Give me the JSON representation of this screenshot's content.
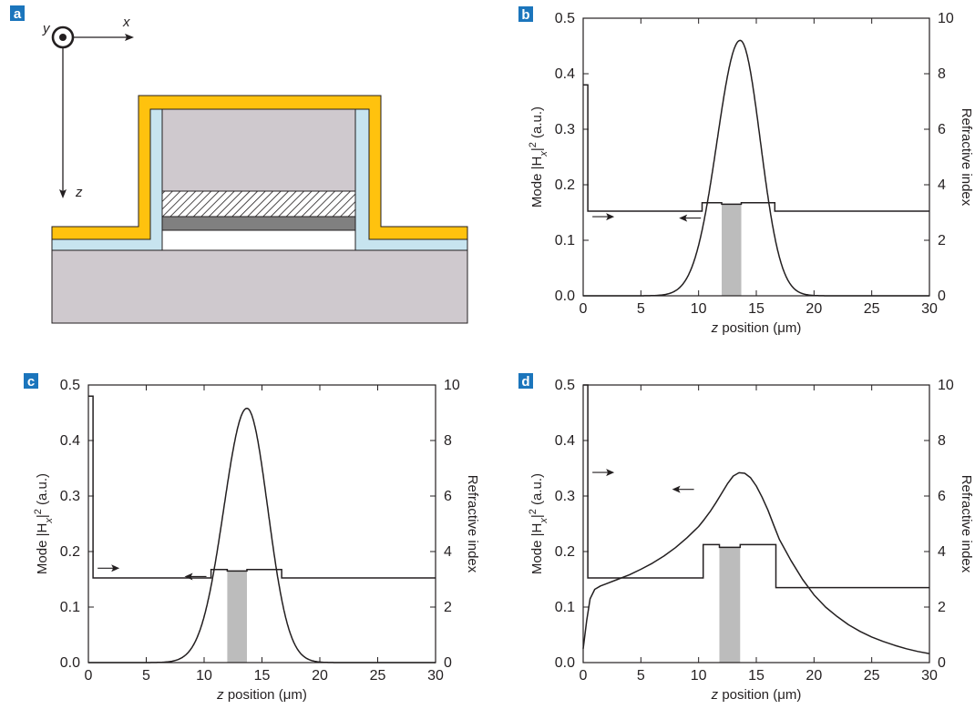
{
  "panel_a": {
    "label": "a",
    "axis_y": "y",
    "axis_x": "x",
    "axis_z": "z"
  },
  "colors": {
    "gold": "#ffc20e",
    "blue_layer": "#c7e4ef",
    "substrate": "#cfc9ce",
    "dark_layer": "#808080",
    "active_region": "#bcbcbc",
    "label_box": "#1b75bc",
    "ink": "#231f20"
  },
  "chart_data": [
    {
      "type": "line",
      "panel": "b",
      "xlabel_italic": "z",
      "xlabel_rest": " position (μm)",
      "ylabel_main": "Mode |H",
      "ylabel_sub": "x",
      "ylabel_tail": "|",
      "ylabel_sup": "2",
      "ylabel_unit": " (a.u.)",
      "y2label": "Refractive index",
      "xlim": [
        0,
        30
      ],
      "ylim": [
        0,
        0.5
      ],
      "y2lim": [
        0,
        10
      ],
      "xticks": [
        "0",
        "5",
        "10",
        "15",
        "20",
        "25",
        "30"
      ],
      "yticks": [
        "0.0",
        "0.1",
        "0.2",
        "0.3",
        "0.4",
        "0.5"
      ],
      "y2ticks": [
        "0",
        "2",
        "4",
        "6",
        "8",
        "10"
      ],
      "mode": {
        "shape": "gaussian",
        "peak_z": 13.6,
        "peak_value": 0.46,
        "width_left": 2.0,
        "width_right": 1.75,
        "floor": 0
      },
      "index": {
        "x": [
          0,
          0.4,
          0.4,
          10.3,
          10.3,
          12.0,
          12.0,
          13.7,
          13.7,
          16.6,
          16.6,
          30
        ],
        "y": [
          7.6,
          7.6,
          3.05,
          3.05,
          3.35,
          3.35,
          3.3,
          3.3,
          3.35,
          3.35,
          3.05,
          3.05
        ]
      },
      "active_band": [
        12.0,
        13.7
      ],
      "active_band_height": 3.3,
      "arrows": [
        {
          "x": 0.8,
          "y2": 2.85,
          "direction": "right"
        },
        {
          "x": 10.2,
          "y": 0.14,
          "direction": "left"
        }
      ]
    },
    {
      "type": "line",
      "panel": "c",
      "xlabel_italic": "z",
      "xlabel_rest": " position (μm)",
      "ylabel_main": "Mode |H",
      "ylabel_sub": "x",
      "ylabel_tail": "|",
      "ylabel_sup": "2",
      "ylabel_unit": " (a.u.)",
      "y2label": "Refractive index",
      "xlim": [
        0,
        30
      ],
      "ylim": [
        0,
        0.5
      ],
      "y2lim": [
        0,
        10
      ],
      "xticks": [
        "0",
        "5",
        "10",
        "15",
        "20",
        "25",
        "30"
      ],
      "yticks": [
        "0.0",
        "0.1",
        "0.2",
        "0.3",
        "0.4",
        "0.5"
      ],
      "y2ticks": [
        "0",
        "2",
        "4",
        "6",
        "8",
        "10"
      ],
      "mode": {
        "shape": "gaussian",
        "peak_z": 13.7,
        "peak_value": 0.458,
        "width_left": 2.0,
        "width_right": 1.8,
        "floor": 0
      },
      "index": {
        "x": [
          0,
          0.4,
          0.4,
          10.6,
          10.6,
          12.0,
          12.0,
          13.7,
          13.7,
          16.7,
          16.7,
          30
        ],
        "y": [
          9.6,
          9.6,
          3.05,
          3.05,
          3.35,
          3.35,
          3.3,
          3.3,
          3.35,
          3.35,
          3.05,
          3.05
        ]
      },
      "active_band": [
        12.0,
        13.7
      ],
      "active_band_height": 3.3,
      "arrows": [
        {
          "x": 0.8,
          "y2": 3.4,
          "direction": "right"
        },
        {
          "x": 10.2,
          "y": 0.155,
          "direction": "left"
        }
      ]
    },
    {
      "type": "line",
      "panel": "d",
      "xlabel_italic": "z",
      "xlabel_rest": " position (μm)",
      "ylabel_main": "Mode |H",
      "ylabel_sub": "x",
      "ylabel_tail": "|",
      "ylabel_sup": "2",
      "ylabel_unit": " (a.u.)",
      "y2label": "Refractive index",
      "xlim": [
        0,
        30
      ],
      "ylim": [
        0,
        0.5
      ],
      "y2lim": [
        0,
        10
      ],
      "xticks": [
        "0",
        "5",
        "10",
        "15",
        "20",
        "25",
        "30"
      ],
      "yticks": [
        "0.0",
        "0.1",
        "0.2",
        "0.3",
        "0.4",
        "0.5"
      ],
      "y2ticks": [
        "0",
        "2",
        "4",
        "6",
        "8",
        "10"
      ],
      "mode": {
        "shape": "points",
        "x": [
          0,
          0.3,
          0.6,
          1.0,
          1.5,
          2,
          3,
          4,
          5,
          6,
          7,
          8,
          9,
          10,
          10.5,
          11,
          11.5,
          12,
          12.5,
          13,
          13.5,
          14,
          14.5,
          15,
          15.5,
          16,
          16.5,
          17,
          18,
          19,
          20,
          21,
          22,
          23,
          24,
          25,
          26,
          27,
          28,
          29,
          30
        ],
        "y": [
          0.025,
          0.075,
          0.115,
          0.132,
          0.138,
          0.142,
          0.15,
          0.158,
          0.168,
          0.179,
          0.192,
          0.207,
          0.225,
          0.245,
          0.258,
          0.272,
          0.288,
          0.305,
          0.322,
          0.336,
          0.342,
          0.341,
          0.333,
          0.318,
          0.298,
          0.275,
          0.248,
          0.222,
          0.184,
          0.15,
          0.122,
          0.1,
          0.083,
          0.068,
          0.056,
          0.046,
          0.038,
          0.031,
          0.025,
          0.02,
          0.016
        ]
      },
      "index": {
        "x": [
          0,
          0.4,
          0.4,
          10.4,
          10.4,
          11.8,
          11.8,
          13.6,
          13.6,
          16.7,
          16.7,
          30
        ],
        "y": [
          10,
          10,
          3.05,
          3.05,
          4.25,
          4.25,
          4.15,
          4.15,
          4.25,
          4.25,
          2.7,
          2.7
        ]
      },
      "active_band": [
        11.8,
        13.6
      ],
      "active_band_height": 4.15,
      "arrows": [
        {
          "x": 0.8,
          "y2": 6.85,
          "direction": "right"
        },
        {
          "x": 9.6,
          "y": 0.312,
          "direction": "left"
        }
      ]
    }
  ]
}
